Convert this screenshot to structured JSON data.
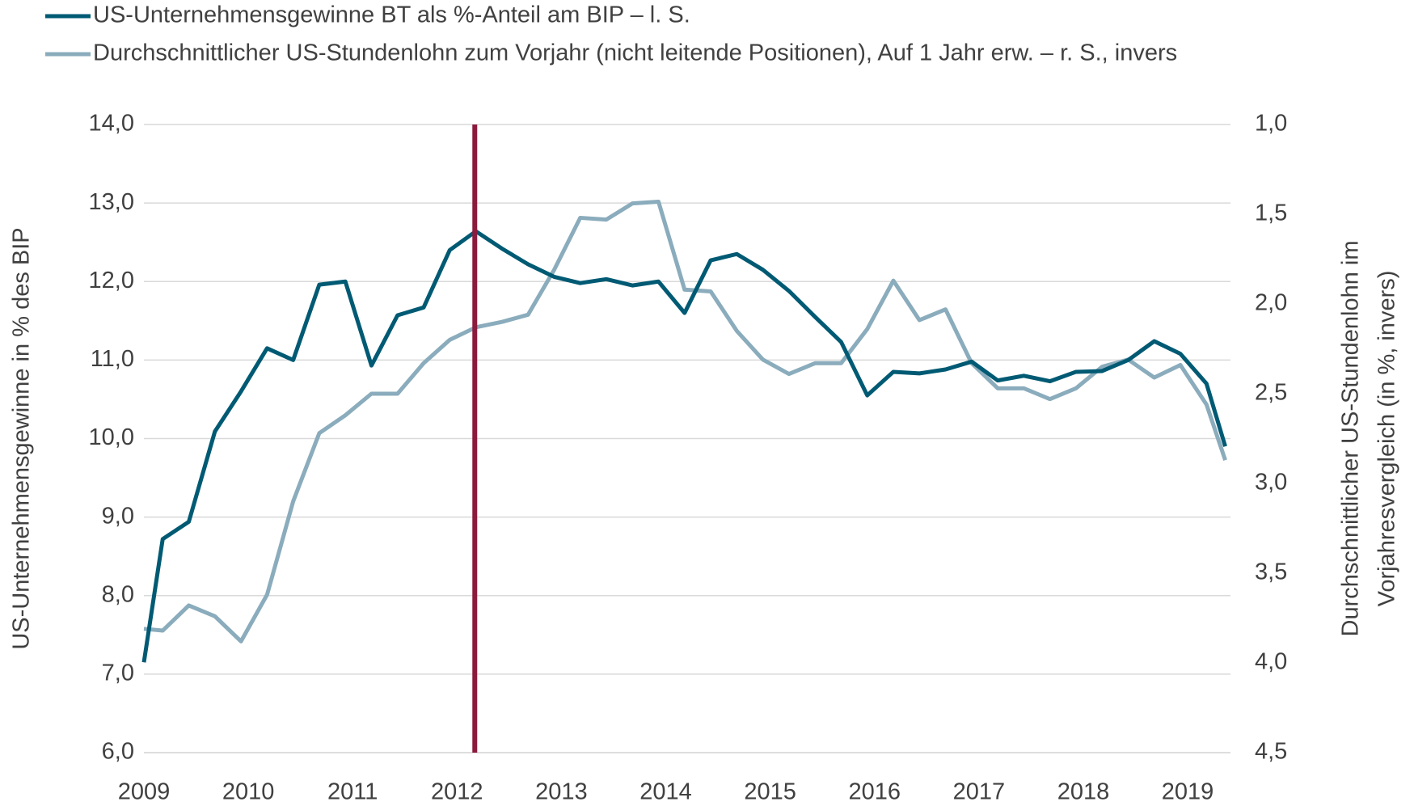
{
  "chart_data": {
    "type": "line",
    "ylabel": "US-Unternehmensgewinne in % des BIP",
    "y2label": [
      "Durchschnittlicher US-Stundenlohn im",
      "Vorjahresvergleich  (in %, invers)"
    ],
    "y2_inverted": true,
    "x": [
      2009.0,
      2009.18,
      2009.43,
      2009.68,
      2009.93,
      2010.18,
      2010.43,
      2010.68,
      2010.93,
      2011.18,
      2011.43,
      2011.68,
      2011.93,
      2012.18,
      2012.43,
      2012.68,
      2012.93,
      2013.18,
      2013.43,
      2013.68,
      2013.93,
      2014.18,
      2014.43,
      2014.68,
      2014.93,
      2015.18,
      2015.43,
      2015.68,
      2015.93,
      2016.18,
      2016.43,
      2016.68,
      2016.93,
      2017.18,
      2017.43,
      2017.68,
      2017.93,
      2018.18,
      2018.43,
      2018.68,
      2018.93,
      2019.18,
      2019.36
    ],
    "series": [
      {
        "name": "US-Unternehmensgewinne BT als %-Anteil am BIP – l. S.",
        "color": "#005a73",
        "values": [
          7.15,
          8.72,
          8.94,
          10.09,
          10.6,
          11.15,
          11.0,
          11.96,
          12.0,
          10.93,
          11.57,
          11.67,
          12.4,
          12.64,
          12.42,
          12.22,
          12.06,
          11.98,
          12.03,
          11.95,
          12.0,
          11.6,
          12.27,
          12.35,
          12.15,
          11.88,
          11.55,
          11.23,
          10.55,
          10.85,
          10.83,
          10.88,
          10.98,
          10.74,
          10.8,
          10.73,
          10.85,
          10.86,
          11.0,
          11.24,
          11.08,
          10.7,
          9.9
        ]
      },
      {
        "name": "Durchschnittlicher US-Stundenlohn zum Vorjahr (nicht leitende Positionen), Auf 1 Jahr erw. – r. S., invers",
        "color": "#8aacbc",
        "axis": "y2",
        "values": [
          3.81,
          3.82,
          3.68,
          3.74,
          3.88,
          3.62,
          3.1,
          2.72,
          2.62,
          2.5,
          2.5,
          2.33,
          2.2,
          2.13,
          2.1,
          2.06,
          1.81,
          1.52,
          1.53,
          1.44,
          1.43,
          1.92,
          1.93,
          2.15,
          2.31,
          2.39,
          2.33,
          2.33,
          2.14,
          1.87,
          2.09,
          2.03,
          2.33,
          2.47,
          2.47,
          2.53,
          2.47,
          2.35,
          2.31,
          2.41,
          2.34,
          2.56,
          2.87
        ]
      }
    ],
    "vline": {
      "x": 2012.17,
      "color": "#8b1a3c"
    },
    "xlim": [
      2009,
      2019.41
    ],
    "xticks": [
      2009,
      2010,
      2011,
      2012,
      2013,
      2014,
      2015,
      2016,
      2017,
      2018,
      2019
    ],
    "ylim": [
      6,
      14
    ],
    "yticks": [
      {
        "value": 6,
        "label": "6,0"
      },
      {
        "value": 7,
        "label": "7,0"
      },
      {
        "value": 8,
        "label": "8,0"
      },
      {
        "value": 9,
        "label": "9,0"
      },
      {
        "value": 10,
        "label": "10,0"
      },
      {
        "value": 11,
        "label": "11,0"
      },
      {
        "value": 12,
        "label": "12,0"
      },
      {
        "value": 13,
        "label": "13,0"
      },
      {
        "value": 14,
        "label": "14,0"
      }
    ],
    "y2lim": [
      1,
      4.5
    ],
    "y2ticks": [
      {
        "value": 1,
        "label": "1,0"
      },
      {
        "value": 1.5,
        "label": "1,5"
      },
      {
        "value": 2,
        "label": "2,0"
      },
      {
        "value": 2.5,
        "label": "2,5"
      },
      {
        "value": 3,
        "label": "3,0"
      },
      {
        "value": 3.5,
        "label": "3,5"
      },
      {
        "value": 4,
        "label": "4,0"
      },
      {
        "value": 4.5,
        "label": "4,5"
      }
    ],
    "grid": true,
    "legend": "top-left"
  }
}
